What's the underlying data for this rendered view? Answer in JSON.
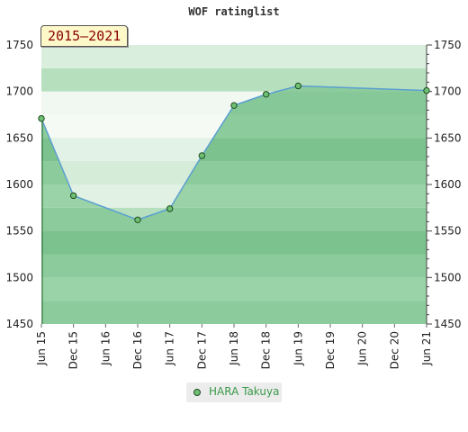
{
  "chart_data": {
    "type": "area",
    "title": "WOF ratinglist",
    "range_label": "2015–2021",
    "categories": [
      "Jun 15",
      "Dec 15",
      "Jun 16",
      "Dec 16",
      "Jun 17",
      "Dec 17",
      "Jun 18",
      "Dec 18",
      "Jun 19",
      "Dec 19",
      "Jun 20",
      "Dec 20",
      "Jun 21"
    ],
    "y_ticks": [
      1450,
      1500,
      1550,
      1600,
      1650,
      1700,
      1750
    ],
    "ylim": [
      1450,
      1750
    ],
    "series": [
      {
        "name": "HARA Takuya",
        "points": [
          {
            "x": 0,
            "y": 1671
          },
          {
            "x": 1,
            "y": 1588
          },
          {
            "x": 3,
            "y": 1562
          },
          {
            "x": 4,
            "y": 1574
          },
          {
            "x": 5,
            "y": 1631
          },
          {
            "x": 6,
            "y": 1685
          },
          {
            "x": 7,
            "y": 1697
          },
          {
            "x": 8,
            "y": 1706
          },
          {
            "x": 12,
            "y": 1701
          }
        ]
      }
    ],
    "colors": {
      "line": "#5a9fd0",
      "marker_fill": "#6fbf73",
      "marker_stroke": "#1f4d1f",
      "band_light": "#d9eedd",
      "band_dark": "#b6dfbe",
      "fill_area": "#8fcb9c"
    }
  }
}
